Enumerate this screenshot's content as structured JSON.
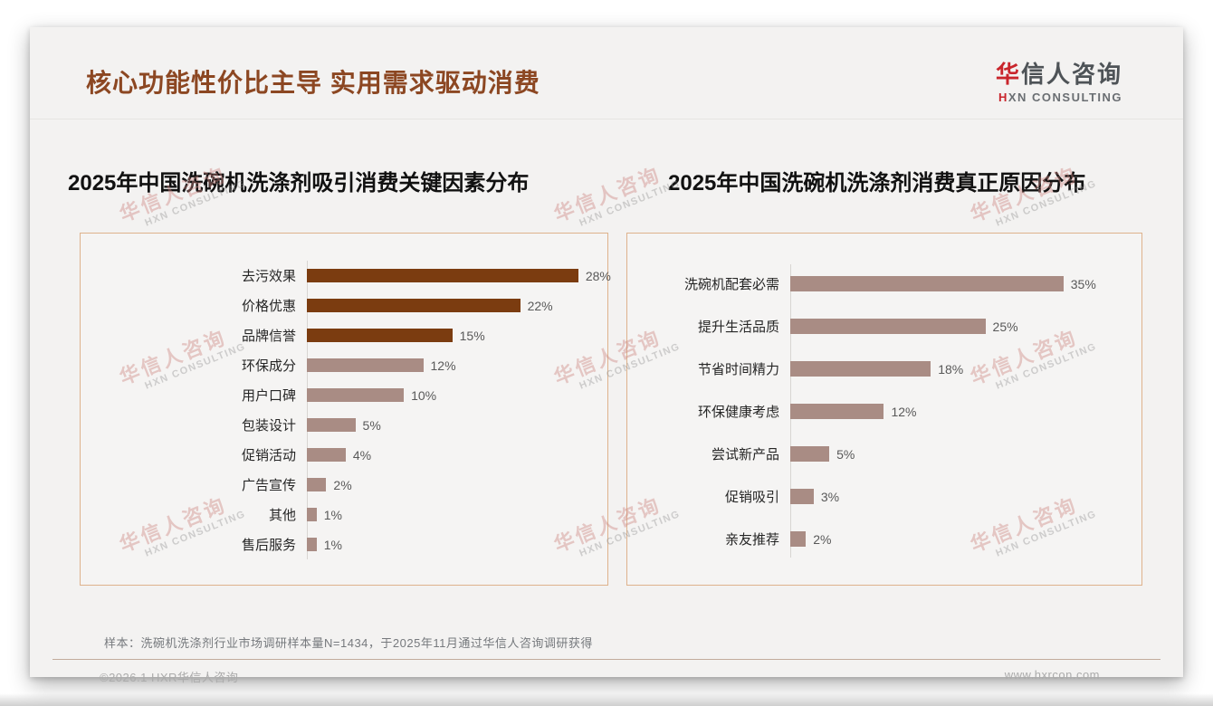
{
  "header": {
    "title": "核心功能性价比主导 实用需求驱动消费",
    "logo": {
      "cn_first": "华",
      "cn_rest": "信人咨询",
      "en_first": "H",
      "en_rest": "XN CONSULTING"
    }
  },
  "watermark": {
    "cn": "华信人咨询",
    "en": "HXN CONSULTING"
  },
  "chart_data": [
    {
      "type": "bar",
      "orientation": "horizontal",
      "title": "2025年中国洗碗机洗涤剂吸引消费关键因素分布",
      "categories": [
        "去污效果",
        "价格优惠",
        "品牌信誉",
        "环保成分",
        "用户口碑",
        "包装设计",
        "促销活动",
        "广告宣传",
        "其他",
        "售后服务"
      ],
      "values": [
        28,
        22,
        15,
        12,
        10,
        5,
        4,
        2,
        1,
        1
      ],
      "unit": "%",
      "xlim": [
        0,
        31
      ],
      "grid": false,
      "legend": "none",
      "highlight_top": 3,
      "colors": {
        "highlight": "#7b3c10",
        "normal": "#a98c84"
      }
    },
    {
      "type": "bar",
      "orientation": "horizontal",
      "title": "2025年中国洗碗机洗涤剂消费真正原因分布",
      "categories": [
        "洗碗机配套必需",
        "提升生活品质",
        "节省时间精力",
        "环保健康考虑",
        "尝试新产品",
        "促销吸引",
        "亲友推荐"
      ],
      "values": [
        35,
        25,
        18,
        12,
        5,
        3,
        2
      ],
      "unit": "%",
      "xlim": [
        0,
        45
      ],
      "grid": false,
      "legend": "none",
      "highlight_top": 0,
      "colors": {
        "highlight": "#a98c84",
        "normal": "#a98c84"
      }
    }
  ],
  "footnote": "样本：洗碗机洗涤剂行业市场调研样本量N=1434，于2025年11月通过华信人咨询调研获得",
  "footer": {
    "left": "©2026.1 HXR华信人咨询",
    "right": "www.hxrcon.com"
  }
}
